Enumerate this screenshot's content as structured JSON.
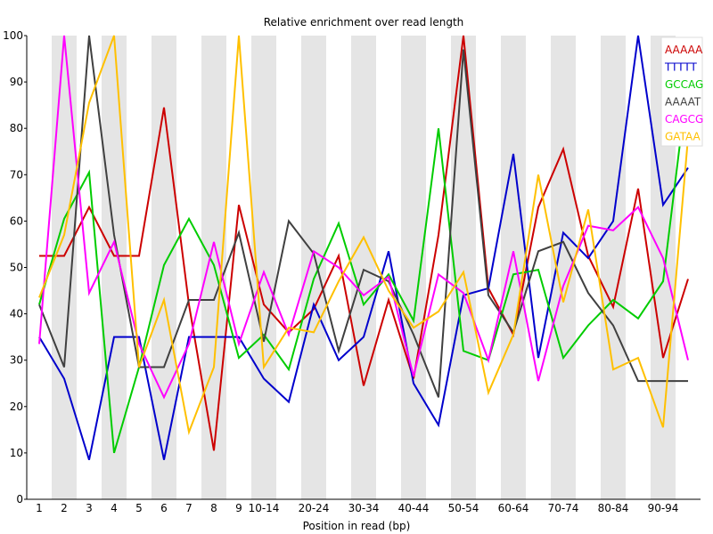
{
  "chart_data": {
    "type": "line",
    "title": "Relative enrichment over read length",
    "xlabel": "Position in read (bp)",
    "ylabel": "",
    "ylim": [
      0,
      100
    ],
    "yticks": [
      0,
      10,
      20,
      30,
      40,
      50,
      60,
      70,
      80,
      90,
      100
    ],
    "categories": [
      "1",
      "2",
      "3",
      "4",
      "5",
      "6",
      "7",
      "8",
      "9",
      "10-14",
      "15-19",
      "20-24",
      "25-29",
      "30-34",
      "35-39",
      "40-44",
      "45-49",
      "50-54",
      "55-59",
      "60-64",
      "65-69",
      "70-74",
      "75-79",
      "80-84",
      "85-89",
      "90-94",
      "95-99"
    ],
    "tick_labels": [
      "1",
      "2",
      "3",
      "4",
      "5",
      "6",
      "7",
      "8",
      "9",
      "10-14",
      "",
      "20-24",
      "",
      "30-34",
      "",
      "40-44",
      "",
      "50-54",
      "",
      "60-64",
      "",
      "70-74",
      "",
      "80-84",
      "",
      "90-94",
      ""
    ],
    "grid": "alternating vertical bands",
    "legend_position": "top-right",
    "series": [
      {
        "name": "AAAAA",
        "color": "#cc0000",
        "values": [
          52.5,
          52.5,
          63,
          52.5,
          52.5,
          84.5,
          42,
          10.5,
          63.5,
          42,
          36,
          41,
          52.5,
          24.5,
          43,
          26,
          57,
          100,
          45.5,
          35.5,
          63,
          75.5,
          52.5,
          41.5,
          67,
          30.5,
          47.5
        ]
      },
      {
        "name": "TTTTT",
        "color": "#0000cc",
        "values": [
          35,
          26,
          8.5,
          35,
          35,
          8.5,
          35,
          35,
          35,
          26,
          21,
          42,
          30,
          35,
          53.5,
          25,
          16,
          44,
          45.5,
          74.5,
          30.5,
          57.5,
          52,
          60,
          100,
          63.5,
          71.5
        ]
      },
      {
        "name": "GCCAG",
        "color": "#00cc00",
        "values": [
          42,
          60.5,
          70.5,
          10,
          28.5,
          50.5,
          60.5,
          50.5,
          30.5,
          35.5,
          28,
          47.5,
          59.5,
          42,
          48.5,
          38.5,
          80,
          32,
          30,
          48.5,
          49.5,
          30.5,
          37.5,
          43,
          39,
          47,
          91
        ]
      },
      {
        "name": "AAAAT",
        "color": "#404040",
        "values": [
          42,
          28.5,
          100,
          57,
          28.5,
          28.5,
          43,
          43,
          57.5,
          34,
          60,
          53,
          32,
          49.5,
          47,
          35.5,
          22,
          97,
          44,
          36,
          53.5,
          55.5,
          44.5,
          37.5,
          25.5,
          25.5,
          25.5
        ]
      },
      {
        "name": "CAGCG",
        "color": "#ff00ff",
        "values": [
          33.5,
          100,
          44.5,
          55.5,
          33.5,
          22,
          33.5,
          55.5,
          33.5,
          49,
          35.5,
          53.5,
          50,
          44,
          48,
          26.5,
          48.5,
          44.5,
          30,
          53.5,
          25.5,
          46,
          59,
          58,
          63,
          52,
          30
        ]
      },
      {
        "name": "GATAA",
        "color": "#ffc000",
        "values": [
          43.5,
          57,
          85.5,
          100,
          28.5,
          43,
          14.5,
          28.5,
          100,
          28.5,
          37,
          36,
          47,
          56.5,
          45,
          37,
          40.5,
          49,
          23,
          35.5,
          70,
          42.5,
          62.5,
          28,
          30.5,
          15.5,
          78
        ]
      }
    ]
  }
}
